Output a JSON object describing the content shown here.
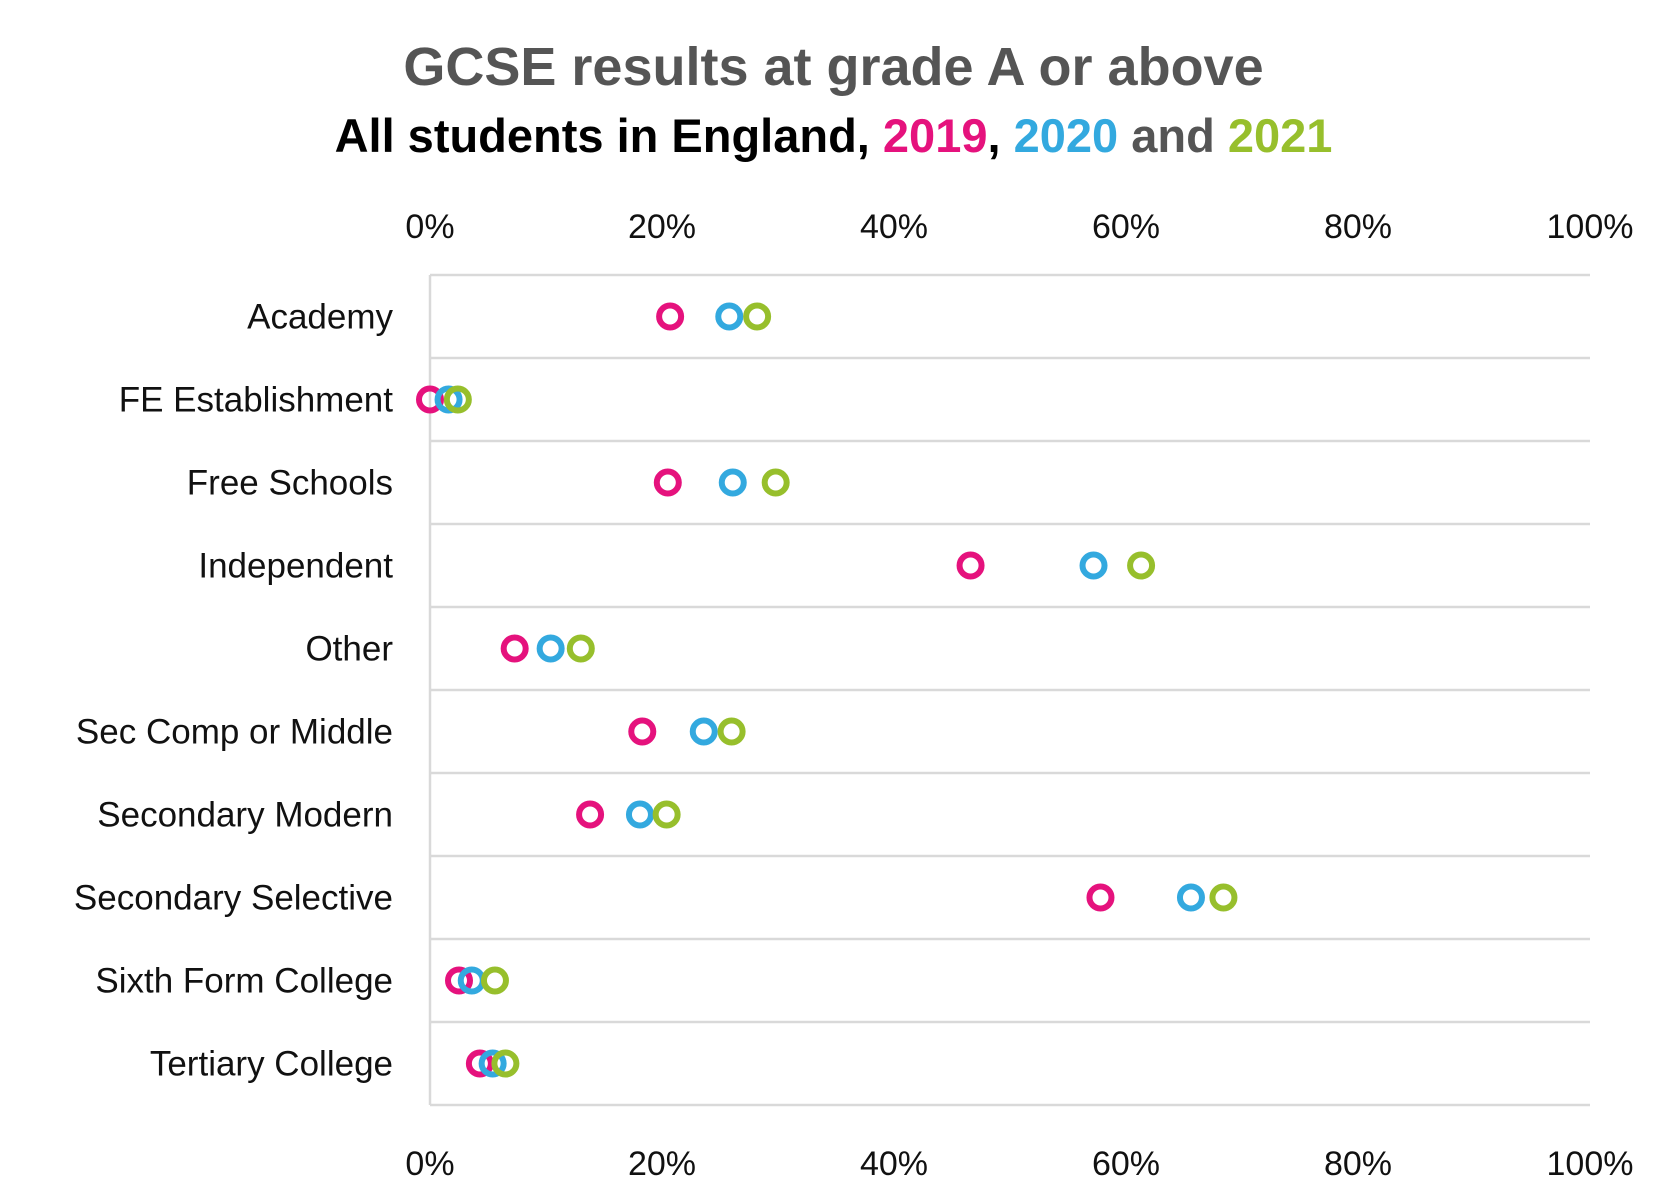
{
  "title": "GCSE results at grade A or above",
  "subtitle": {
    "prefix": "All students in England, ",
    "y2019": "2019",
    "sep": ", ",
    "y2020": "2020",
    "and": " and ",
    "y2021": "2021"
  },
  "colors": {
    "y2019": "#e5127d",
    "y2020": "#33a9df",
    "y2021": "#97bf2c",
    "grid": "#d9d9d9",
    "title": "#555555"
  },
  "chart_data": {
    "type": "scatter",
    "orientation": "horizontal dot plot",
    "xlim": [
      0,
      100
    ],
    "x_ticks": [
      "0%",
      "20%",
      "40%",
      "60%",
      "80%",
      "100%"
    ],
    "x_axis_position": "top and bottom",
    "grid": true,
    "categories": [
      "Academy",
      "FE Establishment",
      "Free Schools",
      "Independent",
      "Other",
      "Sec Comp or Middle",
      "Secondary Modern",
      "Secondary Selective",
      "Sixth Form College",
      "Tertiary College"
    ],
    "series": [
      {
        "name": "2019",
        "color_key": "y2019",
        "values": [
          20.7,
          0.0,
          20.5,
          46.6,
          7.3,
          18.3,
          13.8,
          57.8,
          2.5,
          4.3
        ]
      },
      {
        "name": "2020",
        "color_key": "y2020",
        "values": [
          25.8,
          1.6,
          26.1,
          57.2,
          10.4,
          23.6,
          18.1,
          65.6,
          3.6,
          5.4
        ]
      },
      {
        "name": "2021",
        "color_key": "y2021",
        "values": [
          28.2,
          2.4,
          29.8,
          61.3,
          13.0,
          26.0,
          20.4,
          68.4,
          5.6,
          6.5
        ]
      }
    ]
  }
}
